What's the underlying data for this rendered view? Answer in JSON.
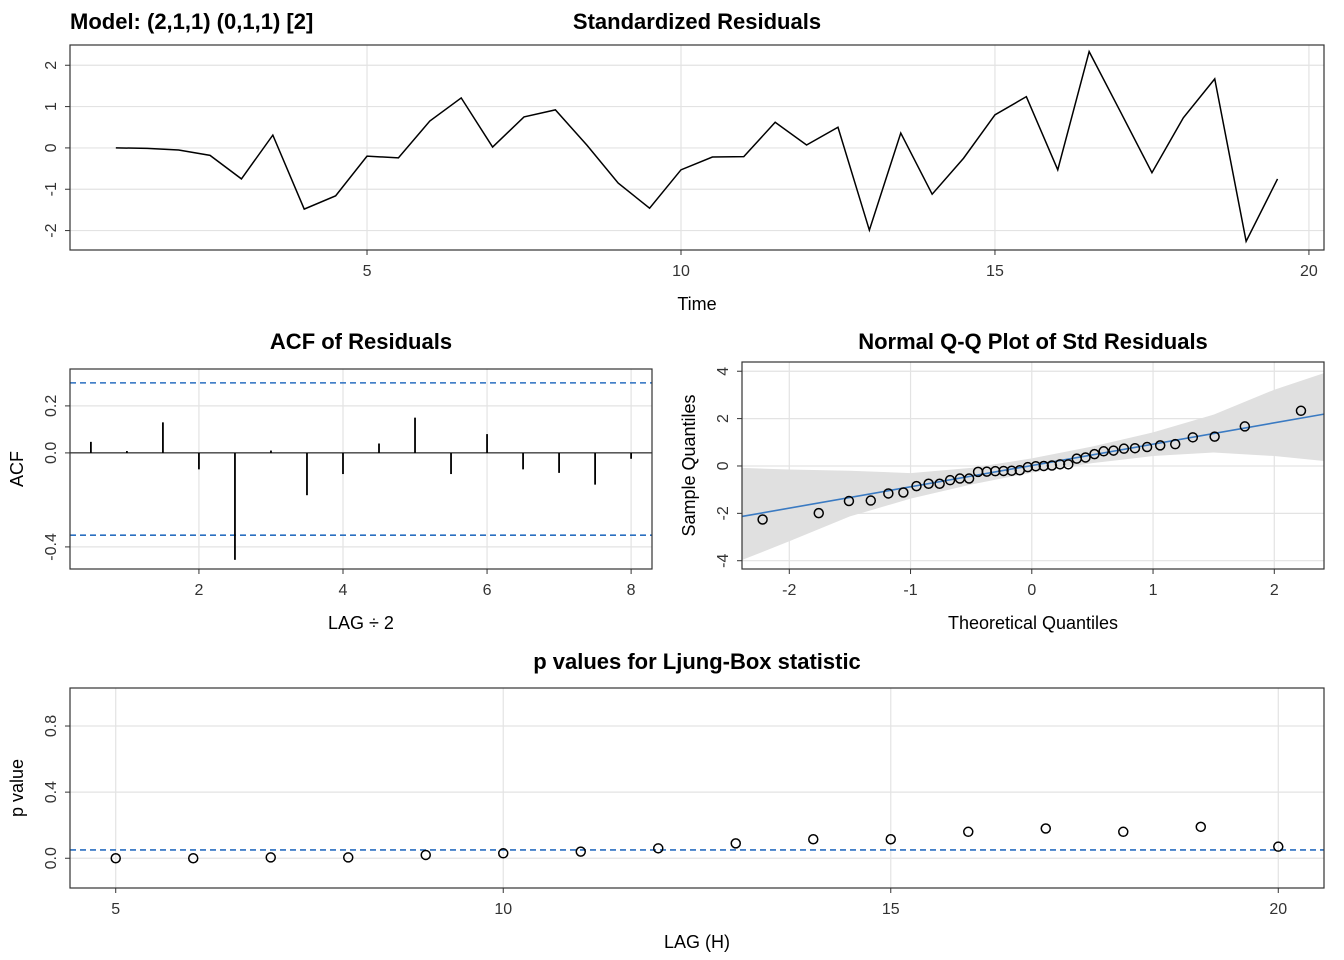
{
  "chart_data": [
    {
      "type": "line",
      "title": "Standardized Residuals",
      "annotation": "Model: (2,1,1) (0,1,1) [2]",
      "xlabel": "Time",
      "x": [
        1,
        1.5,
        2,
        2.5,
        3,
        3.5,
        4,
        4.5,
        5,
        5.5,
        6,
        6.5,
        7,
        7.5,
        8,
        8.5,
        9,
        9.5,
        10,
        10.5,
        11,
        11.5,
        12,
        12.5,
        13,
        13.5,
        14,
        14.5,
        15,
        15.5,
        16,
        16.5,
        17,
        17.5,
        18,
        18.5,
        19,
        19.5
      ],
      "values": [
        0,
        -0.01,
        -0.05,
        -0.18,
        -0.75,
        0.31,
        -1.48,
        -1.16,
        -0.2,
        -0.24,
        0.65,
        1.21,
        0.02,
        0.75,
        0.92,
        0.07,
        -0.85,
        -1.46,
        -0.53,
        -0.22,
        -0.21,
        0.62,
        0.07,
        0.5,
        -1.99,
        0.36,
        -1.12,
        -0.25,
        0.8,
        1.24,
        -0.53,
        2.33,
        0.87,
        -0.6,
        0.73,
        1.67,
        -2.26,
        -0.75
      ],
      "color": "#000000",
      "xlim": [
        0.27,
        20.24
      ],
      "ylim": [
        -2.47,
        2.49
      ],
      "xticks": [
        5,
        10,
        15,
        20
      ],
      "yticks": [
        -2,
        -1,
        0,
        1,
        2
      ],
      "grid": true
    },
    {
      "type": "bar",
      "title": "ACF of Residuals",
      "xlabel": "LAG ÷ 2",
      "ylabel": "ACF",
      "x": [
        0.5,
        1,
        1.5,
        2,
        2.5,
        3,
        3.5,
        4,
        4.5,
        5,
        5.5,
        6,
        6.5,
        7,
        7.5,
        8
      ],
      "values": [
        0.047,
        0.008,
        0.13,
        -0.07,
        -0.455,
        0.01,
        -0.18,
        -0.09,
        0.04,
        0.15,
        -0.09,
        0.08,
        -0.07,
        -0.085,
        -0.135,
        -0.025
      ],
      "color": "#000000",
      "ref_hlines": [
        0.298,
        -0.35
      ],
      "ref_color": "#2a6fc0",
      "xlim": [
        0.21,
        8.29
      ],
      "ylim": [
        -0.494,
        0.357
      ],
      "xticks": [
        2,
        4,
        6,
        8
      ],
      "yticks": [
        -0.4,
        {
          "value": 0,
          "label": "0.0"
        },
        0.2
      ],
      "grid": true
    },
    {
      "type": "scatter",
      "title": "Normal Q-Q Plot of Std Residuals",
      "xlabel": "Theoretical Quantiles",
      "ylabel": "Sample Quantiles",
      "x": [
        -2.22,
        -1.757,
        -1.508,
        -1.328,
        -1.183,
        -1.059,
        -0.951,
        -0.851,
        -0.76,
        -0.674,
        -0.593,
        -0.517,
        -0.443,
        -0.371,
        -0.301,
        -0.233,
        -0.166,
        -0.099,
        -0.033,
        0.033,
        0.099,
        0.166,
        0.233,
        0.301,
        0.371,
        0.443,
        0.517,
        0.593,
        0.674,
        0.76,
        0.851,
        0.951,
        1.059,
        1.183,
        1.328,
        1.508,
        1.757,
        2.22
      ],
      "values": [
        -2.26,
        -1.99,
        -1.48,
        -1.46,
        -1.16,
        -1.12,
        -0.85,
        -0.75,
        -0.75,
        -0.6,
        -0.53,
        -0.53,
        -0.25,
        -0.24,
        -0.22,
        -0.21,
        -0.2,
        -0.18,
        -0.05,
        -0.01,
        0,
        0.02,
        0.07,
        0.07,
        0.31,
        0.36,
        0.5,
        0.62,
        0.65,
        0.73,
        0.75,
        0.8,
        0.87,
        0.92,
        1.21,
        1.24,
        1.67,
        2.33
      ],
      "color": "#000000",
      "ref_line": {
        "intercept": 0.02,
        "slope": 0.9,
        "color": "#3a7ac2"
      },
      "band": {
        "x": [
          -2.39,
          -2,
          -1.5,
          -1,
          -0.5,
          0,
          0.5,
          1,
          1.5,
          2,
          2.41
        ],
        "lower": [
          -3.97,
          -3.18,
          -2.13,
          -1.38,
          -0.78,
          -0.28,
          0.12,
          0.42,
          0.57,
          0.42,
          0.21
        ],
        "upper": [
          -0.08,
          -0.15,
          -0.2,
          -0.3,
          -0.08,
          0.32,
          0.82,
          1.42,
          2.17,
          3.22,
          3.92
        ],
        "color": "#e0e0e0"
      },
      "xlim": [
        -2.39,
        2.41
      ],
      "ylim": [
        -4.35,
        4.39
      ],
      "xticks": [
        -2,
        -1,
        0,
        1,
        2
      ],
      "yticks": [
        -4,
        -2,
        0,
        2,
        4
      ],
      "grid": true
    },
    {
      "type": "scatter",
      "title": "p values for Ljung-Box statistic",
      "xlabel": "LAG (H)",
      "ylabel": "p value",
      "x": [
        5,
        6,
        7,
        8,
        9,
        10,
        11,
        12,
        13,
        14,
        15,
        16,
        17,
        18,
        19,
        20
      ],
      "values": [
        0,
        0,
        0.005,
        0.005,
        0.02,
        0.03,
        0.04,
        0.06,
        0.09,
        0.115,
        0.115,
        0.16,
        0.18,
        0.16,
        0.19,
        0.07
      ],
      "color": "#000000",
      "ref_hlines": [
        0.05
      ],
      "ref_color": "#2a6fc0",
      "xlim": [
        4.41,
        20.59
      ],
      "ylim": [
        -0.18,
        1.03
      ],
      "xticks": [
        5,
        10,
        15,
        20
      ],
      "yticks": [
        {
          "value": 0,
          "label": "0.0"
        },
        0.4,
        0.8
      ],
      "grid": true
    }
  ]
}
